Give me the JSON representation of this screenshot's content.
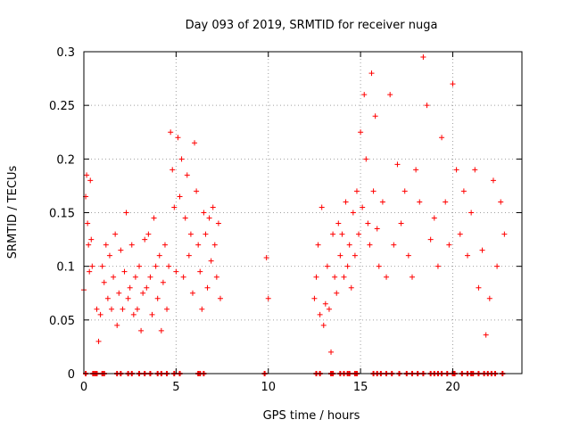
{
  "chart_data": {
    "type": "scatter",
    "title": "Day 093 of 2019, SRMTID for receiver nuga",
    "xlabel": "GPS time / hours",
    "ylabel": "SRMTID / TECUs",
    "xlim": [
      0,
      23.75
    ],
    "ylim": [
      0,
      0.3
    ],
    "xticks": [
      "0",
      "5",
      "10",
      "15",
      "20"
    ],
    "xtick_values": [
      0,
      5,
      10,
      15,
      20
    ],
    "yticks": [
      "0",
      "0.05",
      "0.1",
      "0.15",
      "0.2",
      "0.25",
      "0.3"
    ],
    "ytick_values": [
      0,
      0.05,
      0.1,
      0.15,
      0.2,
      0.25,
      0.3
    ],
    "grid": true,
    "marker": "+",
    "series": [
      {
        "name": "SRMTID",
        "color": "#ff0000",
        "x": [
          0.0,
          0.1,
          0.15,
          0.2,
          0.25,
          0.3,
          0.35,
          0.4,
          0.45,
          0.7,
          0.8,
          0.9,
          1.0,
          1.1,
          1.2,
          1.3,
          1.4,
          1.5,
          1.6,
          1.7,
          1.8,
          1.9,
          2.0,
          2.1,
          2.2,
          2.3,
          2.4,
          2.5,
          2.6,
          2.7,
          2.8,
          2.9,
          3.0,
          3.1,
          3.2,
          3.3,
          3.4,
          3.5,
          3.6,
          3.7,
          3.8,
          3.9,
          4.0,
          4.1,
          4.2,
          4.3,
          4.4,
          4.5,
          4.6,
          4.7,
          4.8,
          4.9,
          5.0,
          5.1,
          5.2,
          5.3,
          5.4,
          5.5,
          5.6,
          5.7,
          5.8,
          5.9,
          6.0,
          6.1,
          6.2,
          6.3,
          6.4,
          6.5,
          6.6,
          6.7,
          6.8,
          6.9,
          7.0,
          7.1,
          7.2,
          7.3,
          7.4,
          9.9,
          10.0,
          12.5,
          12.6,
          12.7,
          12.8,
          12.9,
          13.0,
          13.1,
          13.2,
          13.3,
          13.4,
          13.5,
          13.6,
          13.7,
          13.8,
          13.9,
          14.0,
          14.1,
          14.2,
          14.3,
          14.4,
          14.5,
          14.6,
          14.7,
          14.8,
          14.9,
          15.0,
          15.1,
          15.2,
          15.3,
          15.4,
          15.5,
          15.6,
          15.7,
          15.8,
          15.9,
          16.0,
          16.2,
          16.4,
          16.6,
          16.8,
          17.0,
          17.2,
          17.4,
          17.6,
          17.8,
          18.0,
          18.2,
          18.4,
          18.6,
          18.8,
          19.0,
          19.2,
          19.4,
          19.6,
          19.8,
          20.0,
          20.2,
          20.4,
          20.6,
          20.8,
          21.0,
          21.2,
          21.4,
          21.6,
          21.8,
          22.0,
          22.2,
          22.4,
          22.6,
          22.8
        ],
        "y": [
          0.078,
          0.165,
          0.185,
          0.14,
          0.12,
          0.095,
          0.18,
          0.125,
          0.1,
          0.06,
          0.03,
          0.055,
          0.1,
          0.085,
          0.12,
          0.07,
          0.11,
          0.06,
          0.09,
          0.13,
          0.045,
          0.075,
          0.115,
          0.06,
          0.095,
          0.15,
          0.07,
          0.08,
          0.12,
          0.055,
          0.09,
          0.06,
          0.1,
          0.04,
          0.075,
          0.125,
          0.08,
          0.13,
          0.09,
          0.055,
          0.145,
          0.1,
          0.07,
          0.11,
          0.04,
          0.085,
          0.12,
          0.06,
          0.1,
          0.225,
          0.19,
          0.155,
          0.095,
          0.22,
          0.165,
          0.2,
          0.09,
          0.145,
          0.185,
          0.11,
          0.13,
          0.075,
          0.215,
          0.17,
          0.12,
          0.095,
          0.06,
          0.15,
          0.13,
          0.08,
          0.145,
          0.105,
          0.155,
          0.12,
          0.09,
          0.14,
          0.07,
          0.108,
          0.07,
          0.07,
          0.09,
          0.12,
          0.055,
          0.155,
          0.045,
          0.065,
          0.1,
          0.06,
          0.02,
          0.13,
          0.09,
          0.075,
          0.14,
          0.11,
          0.13,
          0.09,
          0.16,
          0.1,
          0.12,
          0.08,
          0.15,
          0.11,
          0.17,
          0.13,
          0.225,
          0.155,
          0.26,
          0.2,
          0.14,
          0.12,
          0.28,
          0.17,
          0.24,
          0.135,
          0.1,
          0.16,
          0.09,
          0.26,
          0.12,
          0.195,
          0.14,
          0.17,
          0.11,
          0.09,
          0.19,
          0.16,
          0.295,
          0.25,
          0.125,
          0.145,
          0.1,
          0.22,
          0.16,
          0.12,
          0.27,
          0.19,
          0.13,
          0.17,
          0.11,
          0.15,
          0.19,
          0.08,
          0.115,
          0.036,
          0.07,
          0.18,
          0.1,
          0.16,
          0.13
        ],
        "zero_x": [
          0.1,
          0.5,
          0.6,
          0.7,
          1.0,
          1.1,
          1.8,
          2.0,
          2.4,
          2.6,
          3.0,
          3.3,
          3.6,
          4.0,
          4.2,
          4.5,
          4.9,
          5.2,
          6.2,
          6.3,
          6.5,
          9.8,
          12.6,
          12.8,
          13.4,
          13.5,
          13.9,
          14.1,
          14.3,
          14.4,
          14.7,
          14.8,
          15.7,
          15.9,
          16.1,
          16.4,
          16.7,
          17.1,
          17.5,
          17.8,
          18.1,
          18.4,
          18.8,
          19.0,
          19.2,
          19.4,
          19.7,
          20.0,
          20.1,
          20.5,
          20.8,
          21.0,
          21.1,
          21.4,
          21.7,
          21.9,
          22.1,
          22.3,
          22.7
        ]
      }
    ]
  }
}
